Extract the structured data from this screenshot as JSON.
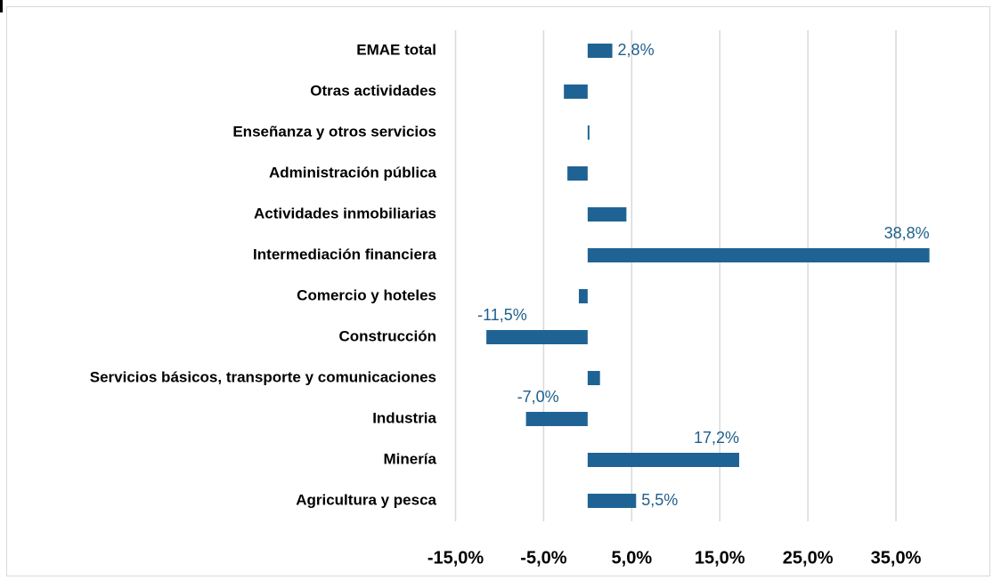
{
  "chart_data": {
    "type": "bar",
    "orientation": "horizontal",
    "categories": [
      "EMAE total",
      "Otras actividades",
      "Enseñanza y otros servicios",
      "Administración pública",
      "Actividades inmobiliarias",
      "Intermediación financiera",
      "Comercio y hoteles",
      "Construcción",
      "Servicios básicos, transporte y comunicaciones",
      "Industria",
      "Minería",
      "Agricultura y pesca"
    ],
    "values": [
      2.8,
      -2.7,
      0.2,
      -2.3,
      4.4,
      38.8,
      -1.0,
      -11.5,
      1.4,
      -7.0,
      17.2,
      5.5
    ],
    "value_labels": [
      "2,8%",
      null,
      null,
      null,
      null,
      "38,8%",
      null,
      "-11,5%",
      null,
      "-7,0%",
      "17,2%",
      "5,5%"
    ],
    "color": "#1f6394",
    "xlim": [
      -15,
      40
    ],
    "xticks": [
      {
        "value": -15,
        "label": "-15,0%"
      },
      {
        "value": -5,
        "label": "-5,0%"
      },
      {
        "value": 5,
        "label": "5,0%"
      },
      {
        "value": 15,
        "label": "15,0%"
      },
      {
        "value": 25,
        "label": "25,0%"
      },
      {
        "value": 35,
        "label": "35,0%"
      }
    ],
    "grid": true
  }
}
